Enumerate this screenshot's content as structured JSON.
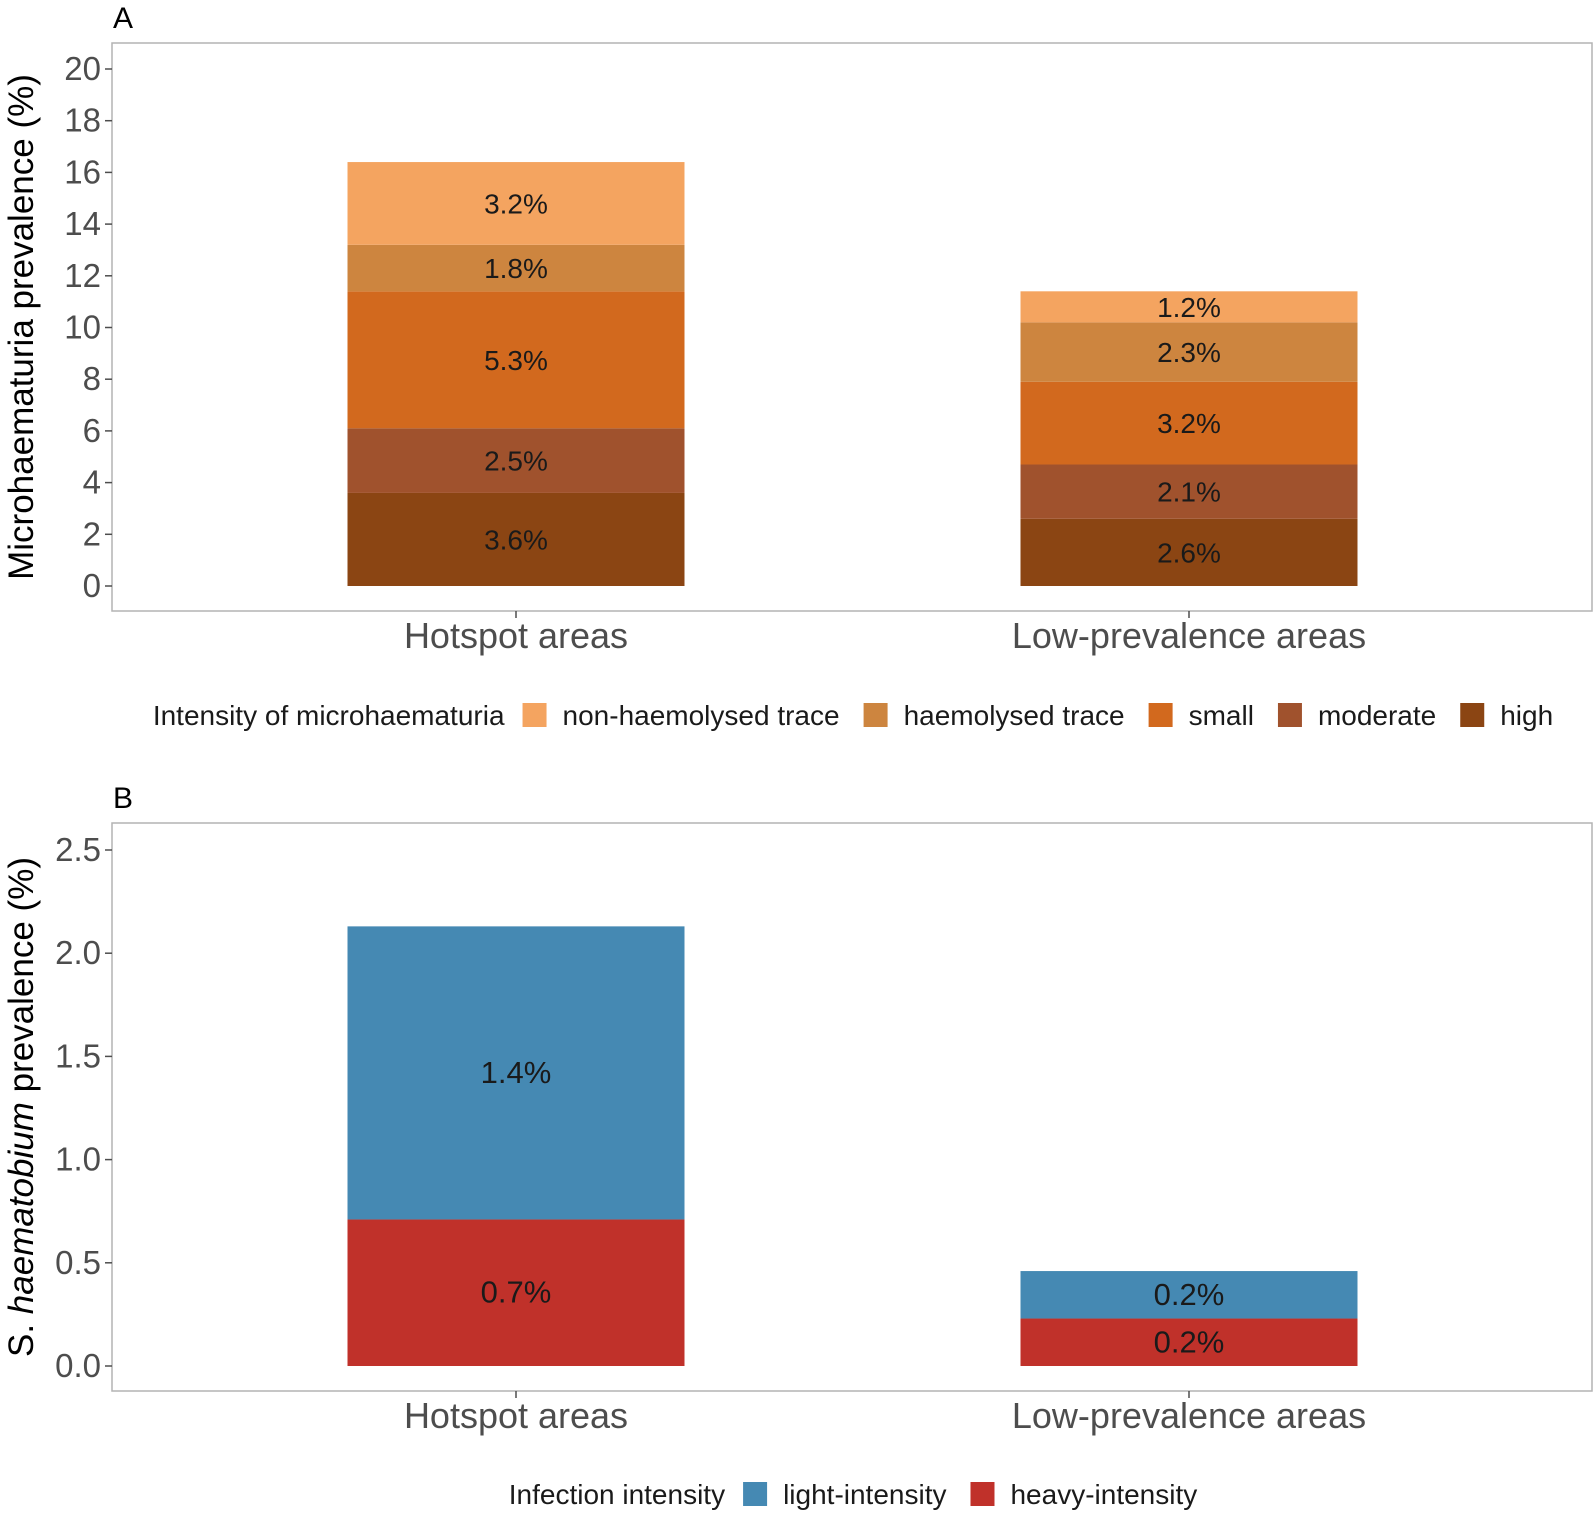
{
  "chart_data": [
    {
      "panel": "A",
      "type": "bar",
      "stacked": true,
      "ylabel": "Microhaematuria prevalence (%)",
      "ylim": [
        0,
        20
      ],
      "yticks": [
        0,
        2,
        4,
        6,
        8,
        10,
        12,
        14,
        16,
        18,
        20
      ],
      "categories": [
        "Hotspot areas",
        "Low-prevalence areas"
      ],
      "legend": {
        "title": "Intensity of microhaematuria",
        "position": "bottom"
      },
      "series": [
        {
          "name": "high",
          "color": "#8B4513",
          "values": [
            3.6,
            2.6
          ],
          "labels": [
            "3.6%",
            "2.6%"
          ]
        },
        {
          "name": "moderate",
          "color": "#A0522D",
          "values": [
            2.5,
            2.1
          ],
          "labels": [
            "2.5%",
            "2.1%"
          ]
        },
        {
          "name": "small",
          "color": "#D2691E",
          "values": [
            5.3,
            3.2
          ],
          "labels": [
            "5.3%",
            "3.2%"
          ]
        },
        {
          "name": "haemolysed trace",
          "color": "#CD853F",
          "values": [
            1.8,
            2.3
          ],
          "labels": [
            "1.8%",
            "2.3%"
          ]
        },
        {
          "name": "non-haemolysed trace",
          "color": "#F4A460",
          "values": [
            3.2,
            1.2
          ],
          "labels": [
            "3.2%",
            "1.2%"
          ]
        }
      ],
      "legend_order": [
        "non-haemolysed trace",
        "haemolysed trace",
        "small",
        "moderate",
        "high"
      ]
    },
    {
      "panel": "B",
      "type": "bar",
      "stacked": true,
      "ylabel_prefix": "S.",
      "ylabel_italic": "haematobium",
      "ylabel_suffix": "prevalence (%)",
      "ylim": [
        0,
        2.5
      ],
      "yticks": [
        "0.0",
        "0.5",
        "1.0",
        "1.5",
        "2.0",
        "2.5"
      ],
      "categories": [
        "Hotspot areas",
        "Low-prevalence areas"
      ],
      "legend": {
        "title": "Infection intensity",
        "position": "bottom"
      },
      "series": [
        {
          "name": "heavy-intensity",
          "color": "#C0312A",
          "values": [
            0.71,
            0.23
          ],
          "labels": [
            "0.7%",
            "0.2%"
          ]
        },
        {
          "name": "light-intensity",
          "color": "#4589B3",
          "values": [
            1.42,
            0.23
          ],
          "labels": [
            "1.4%",
            "0.2%"
          ]
        }
      ],
      "legend_order": [
        "light-intensity",
        "heavy-intensity"
      ]
    }
  ]
}
